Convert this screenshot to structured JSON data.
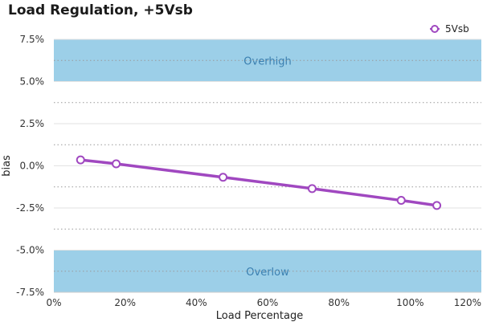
{
  "chart_data": {
    "type": "line",
    "title": "Load Regulation, +5Vsb",
    "xlabel": "Load Percentage",
    "ylabel": "bias",
    "xlim": [
      0,
      120
    ],
    "ylim": [
      -7.5,
      7.5
    ],
    "x_ticks": [
      0,
      20,
      40,
      60,
      80,
      100,
      120
    ],
    "x_tick_labels": [
      "0%",
      "20%",
      "40%",
      "60%",
      "80%",
      "100%",
      "120%"
    ],
    "y_ticks": [
      7.5,
      5.0,
      2.5,
      0.0,
      -2.5,
      -5.0,
      -7.5
    ],
    "y_tick_labels": [
      "7.5%",
      "5.0%",
      "2.5%",
      "0.0%",
      "-2.5%",
      "-5.0%",
      "-7.5%"
    ],
    "grid": true,
    "legend_position": "top-right",
    "bands": [
      {
        "label": "Overhigh",
        "from": 5.0,
        "to": 7.5,
        "color": "#9ccfe8"
      },
      {
        "label": "Overlow",
        "from": -7.5,
        "to": -5.0,
        "color": "#9ccfe8"
      }
    ],
    "series": [
      {
        "name": "5Vsb",
        "color": "#a048c0",
        "x": [
          7.5,
          17.5,
          47.5,
          72.5,
          97.5,
          107.5
        ],
        "y": [
          0.35,
          0.12,
          -0.68,
          -1.35,
          -2.05,
          -2.35
        ]
      }
    ]
  }
}
